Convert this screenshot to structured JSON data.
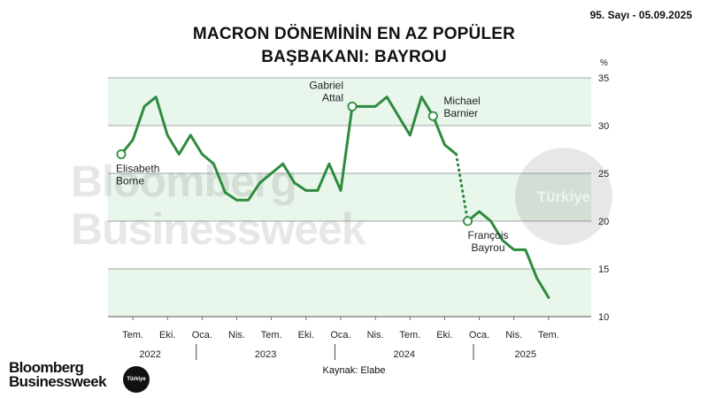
{
  "header": {
    "issue": "95. Sayı - 05.09.2025",
    "title_line1": "MACRON DÖNEMİNİN EN AZ POPÜLER",
    "title_line2": "BAŞBAKANI: BAYROU"
  },
  "source": "Kaynak: Elabe",
  "watermark": {
    "line1": "Bloomberg",
    "line2": "Businessweek",
    "circle_text": "Türkiye"
  },
  "logo": {
    "line1": "Bloomberg",
    "line2": "Businessweek",
    "badge": "Türkiye"
  },
  "colors": {
    "line": "#2e8b3e",
    "band": "#e9f6ec",
    "grid": "#555555"
  },
  "chart_data": {
    "type": "line",
    "title": "MACRON DÖNEMİNİN EN AZ POPÜLER BAŞBAKANI: BAYROU",
    "y_unit": "%",
    "ylim": [
      10,
      35
    ],
    "y_ticks": [
      10,
      15,
      20,
      25,
      30,
      35
    ],
    "shaded_bands": [
      [
        30,
        35
      ],
      [
        20,
        25
      ],
      [
        10,
        15
      ]
    ],
    "x_ticks": [
      {
        "label": "Tem.",
        "date": "2022-07"
      },
      {
        "label": "Eki.",
        "date": "2022-10"
      },
      {
        "label": "Oca.",
        "date": "2023-01"
      },
      {
        "label": "Nis.",
        "date": "2023-04"
      },
      {
        "label": "Tem.",
        "date": "2023-07"
      },
      {
        "label": "Eki.",
        "date": "2023-10"
      },
      {
        "label": "Oca.",
        "date": "2024-01"
      },
      {
        "label": "Nis.",
        "date": "2024-04"
      },
      {
        "label": "Tem.",
        "date": "2024-07"
      },
      {
        "label": "Eki.",
        "date": "2024-10"
      },
      {
        "label": "Oca.",
        "date": "2025-01"
      },
      {
        "label": "Nis.",
        "date": "2025-04"
      },
      {
        "label": "Tem.",
        "date": "2025-07"
      }
    ],
    "years": [
      {
        "label": "2022",
        "start": "2022-05",
        "end": "2022-12"
      },
      {
        "label": "2023",
        "start": "2023-01",
        "end": "2023-12"
      },
      {
        "label": "2024",
        "start": "2024-01",
        "end": "2024-12"
      },
      {
        "label": "2025",
        "start": "2025-01",
        "end": "2025-09"
      }
    ],
    "series": [
      {
        "segments": [
          {
            "style": "solid",
            "points": [
              [
                "2022-06",
                27
              ],
              [
                "2022-07",
                28.5
              ],
              [
                "2022-08",
                32
              ],
              [
                "2022-09",
                33
              ],
              [
                "2022-10",
                29
              ],
              [
                "2022-11",
                27
              ],
              [
                "2022-12",
                29
              ],
              [
                "2023-01",
                27
              ],
              [
                "2023-02",
                26
              ],
              [
                "2023-03",
                23
              ],
              [
                "2023-04",
                22.2
              ],
              [
                "2023-05",
                22.2
              ],
              [
                "2023-06",
                24
              ],
              [
                "2023-07",
                25
              ],
              [
                "2023-08",
                26
              ],
              [
                "2023-09",
                24
              ],
              [
                "2023-10",
                23.2
              ],
              [
                "2023-11",
                23.2
              ],
              [
                "2023-12",
                26
              ],
              [
                "2024-01",
                23.2
              ],
              [
                "2024-02",
                32
              ],
              [
                "2024-03",
                32
              ],
              [
                "2024-04",
                32
              ],
              [
                "2024-05",
                33
              ],
              [
                "2024-06",
                31
              ],
              [
                "2024-07",
                29
              ],
              [
                "2024-08",
                33
              ],
              [
                "2024-09",
                31
              ],
              [
                "2024-10",
                28
              ],
              [
                "2024-11",
                27
              ]
            ]
          },
          {
            "style": "dotted",
            "points": [
              [
                "2024-11",
                27
              ],
              [
                "2024-12",
                20
              ]
            ]
          },
          {
            "style": "solid",
            "points": [
              [
                "2024-12",
                20
              ],
              [
                "2025-01",
                21
              ],
              [
                "2025-02",
                20
              ],
              [
                "2025-03",
                18
              ],
              [
                "2025-04",
                17
              ],
              [
                "2025-05",
                17
              ],
              [
                "2025-06",
                14
              ],
              [
                "2025-07",
                12
              ]
            ]
          }
        ]
      }
    ],
    "annotations": [
      {
        "date": "2022-06",
        "value": 27,
        "lines": [
          "Elisabeth",
          "Borne"
        ],
        "anchor": "below-left"
      },
      {
        "date": "2024-02",
        "value": 32,
        "lines": [
          "Gabriel",
          "Attal"
        ],
        "anchor": "above-left"
      },
      {
        "date": "2024-09",
        "value": 31,
        "lines": [
          "Michael",
          "Barnier"
        ],
        "anchor": "right"
      },
      {
        "date": "2024-12",
        "value": 20,
        "lines": [
          "François",
          "Bayrou"
        ],
        "anchor": "below"
      }
    ]
  }
}
